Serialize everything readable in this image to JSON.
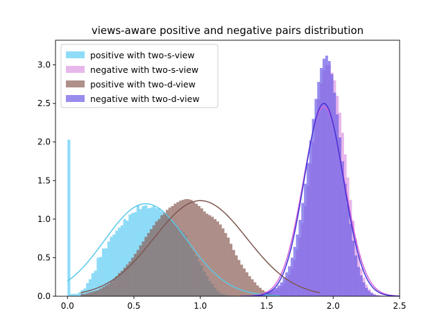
{
  "chart_data": {
    "type": "bar",
    "subtype": "overlaid-histogram-with-fitted-curves",
    "title": "views-aware positive and negative pairs distribution",
    "xlabel": "",
    "ylabel": "",
    "xlim": [
      -0.09,
      2.5
    ],
    "ylim": [
      0.0,
      3.32
    ],
    "xticks": [
      "0.0",
      "0.5",
      "1.0",
      "1.5",
      "2.0",
      "2.5"
    ],
    "xtick_values": [
      0.0,
      0.5,
      1.0,
      1.5,
      2.0,
      2.5
    ],
    "yticks": [
      "0.0",
      "0.5",
      "1.0",
      "1.5",
      "2.0",
      "2.5",
      "3.0"
    ],
    "ytick_values": [
      0.0,
      0.5,
      1.0,
      1.5,
      2.0,
      2.5,
      3.0
    ],
    "grid": false,
    "legend_position": "top-left",
    "series": [
      {
        "name": "positive with two-s-view",
        "color": "#5ecdf5",
        "curve_color": "#5bc8e8",
        "opacity": 0.7,
        "bin_start": 0.0,
        "bin_width": 0.02,
        "values": [
          2.03,
          0.03,
          0.03,
          0.03,
          0.05,
          0.08,
          0.1,
          0.17,
          0.22,
          0.3,
          0.33,
          0.5,
          0.51,
          0.62,
          0.62,
          0.71,
          0.77,
          0.8,
          0.85,
          0.89,
          0.92,
          1.0,
          0.98,
          1.06,
          1.08,
          1.09,
          1.18,
          1.13,
          1.17,
          1.18,
          1.14,
          1.15,
          1.17,
          1.14,
          1.14,
          1.1,
          1.06,
          1.06,
          1.02,
          0.98,
          0.95,
          0.9,
          0.86,
          0.83,
          0.79,
          0.7,
          0.63,
          0.58,
          0.52,
          0.45,
          0.4,
          0.32,
          0.26,
          0.2,
          0.16,
          0.11,
          0.07,
          0.04,
          0.03,
          0.02,
          0.01,
          0.01,
          0.01,
          0.0,
          0.0,
          0.0
        ],
        "curve": {
          "type": "normal",
          "mean": 0.59,
          "std": 0.31,
          "peak": 1.2,
          "x_range": [
            0.0,
            1.6
          ]
        }
      },
      {
        "name": "negative with two-s-view",
        "color": "#dd99e3",
        "curve_color": "#d263dc",
        "opacity": 0.7,
        "bin_start": 1.4,
        "bin_width": 0.02,
        "values": [
          0.01,
          0.01,
          0.02,
          0.03,
          0.04,
          0.05,
          0.06,
          0.07,
          0.09,
          0.11,
          0.13,
          0.17,
          0.22,
          0.28,
          0.36,
          0.47,
          0.6,
          0.76,
          0.95,
          1.17,
          1.43,
          1.72,
          2.0,
          2.28,
          2.55,
          2.76,
          2.93,
          3.0,
          3.0,
          2.9,
          2.8,
          2.6,
          2.38,
          2.12,
          1.84,
          1.54,
          1.25,
          0.98,
          0.74,
          0.53,
          0.36,
          0.24,
          0.15,
          0.09,
          0.05,
          0.03,
          0.02,
          0.01,
          0.01,
          0.0,
          0.0,
          0.0,
          0.0,
          0.0,
          0.0
        ],
        "curve": {
          "type": "normal",
          "mean": 1.93,
          "std": 0.155,
          "peak": 2.46,
          "x_range": [
            1.3,
            2.5
          ]
        }
      },
      {
        "name": "positive with two-d-view",
        "color": "#8b5f57",
        "curve_color": "#7d5650",
        "opacity": 0.7,
        "bin_start": 0.1,
        "bin_width": 0.02,
        "values": [
          0.03,
          0.03,
          0.04,
          0.05,
          0.06,
          0.07,
          0.08,
          0.1,
          0.12,
          0.14,
          0.16,
          0.19,
          0.22,
          0.26,
          0.3,
          0.33,
          0.37,
          0.41,
          0.45,
          0.5,
          0.55,
          0.6,
          0.66,
          0.71,
          0.77,
          0.82,
          0.87,
          0.92,
          0.97,
          1.0,
          1.05,
          1.08,
          1.12,
          1.15,
          1.17,
          1.2,
          1.22,
          1.24,
          1.25,
          1.26,
          1.26,
          1.25,
          1.22,
          1.2,
          1.17,
          1.14,
          1.1,
          1.07,
          1.05,
          1.03,
          1.0,
          0.97,
          0.93,
          0.88,
          0.82,
          0.76,
          0.68,
          0.6,
          0.53,
          0.47,
          0.41,
          0.36,
          0.31,
          0.26,
          0.22,
          0.18,
          0.14,
          0.11,
          0.08,
          0.06,
          0.04,
          0.03,
          0.02,
          0.01,
          0.01,
          0.0
        ],
        "curve": {
          "type": "normal",
          "mean": 1.0,
          "std": 0.35,
          "peak": 1.24,
          "x_range": [
            0.1,
            1.9
          ]
        }
      },
      {
        "name": "negative with two-d-view",
        "color": "#6c5ce6",
        "curve_color": "#3e31d6",
        "opacity": 0.7,
        "bin_start": 1.4,
        "bin_width": 0.02,
        "values": [
          0.02,
          0.02,
          0.03,
          0.04,
          0.05,
          0.06,
          0.07,
          0.09,
          0.11,
          0.14,
          0.18,
          0.24,
          0.31,
          0.39,
          0.5,
          0.64,
          0.8,
          0.99,
          1.21,
          1.46,
          1.73,
          2.02,
          2.3,
          2.56,
          2.78,
          2.96,
          3.08,
          3.12,
          3.05,
          2.88,
          2.64,
          2.36,
          2.06,
          1.75,
          1.46,
          1.19,
          0.94,
          0.72,
          0.53,
          0.38,
          0.27,
          0.18,
          0.11,
          0.07,
          0.04,
          0.02,
          0.01,
          0.01,
          0.0,
          0.0,
          0.0,
          0.0,
          0.0,
          0.0,
          0.0
        ],
        "curve": {
          "type": "normal",
          "mean": 1.93,
          "std": 0.148,
          "peak": 2.5,
          "x_range": [
            1.3,
            2.5
          ]
        }
      }
    ]
  }
}
